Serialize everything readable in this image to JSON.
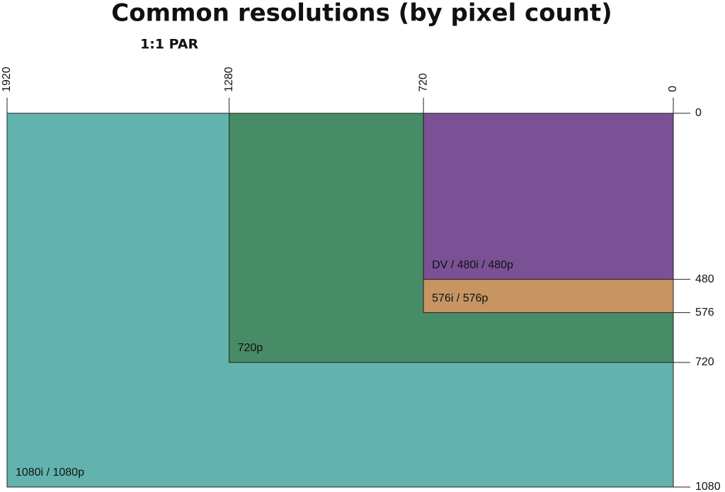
{
  "chart_data": {
    "type": "nested-rect",
    "title": "Common resolutions (by pixel count)",
    "subtitle": "1:1 PAR",
    "xlim": [
      1920,
      0
    ],
    "xticks": [
      1920,
      1280,
      720,
      0
    ],
    "ylim": [
      0,
      1080
    ],
    "yticks": [
      0,
      480,
      576,
      720,
      1080
    ],
    "series": [
      {
        "name": "1080i / 1080p",
        "color": "#62b3ad",
        "width": 1920,
        "height": 1080
      },
      {
        "name": "720p",
        "color": "#478b67",
        "width": 1280,
        "height": 720
      },
      {
        "name": "576i / 576p",
        "color": "#c69562",
        "width": 720,
        "height": 576
      },
      {
        "name": "DV / 480i / 480p",
        "color": "#7a5195",
        "width": 720,
        "height": 480
      }
    ]
  }
}
